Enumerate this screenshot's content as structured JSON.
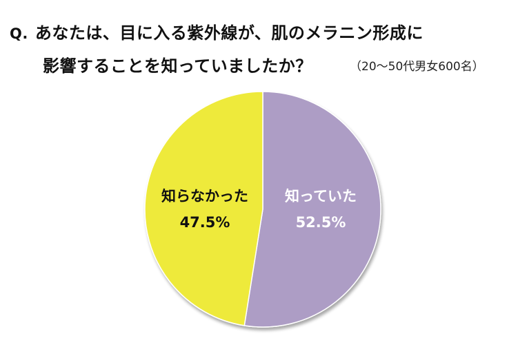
{
  "header": {
    "q_prefix": "Q.",
    "line1": "あなたは、目に入る紫外線が、肌のメラニン形成に",
    "line2": "影響することを知っていましたか？",
    "sample_note": "（20～50代男女600名）"
  },
  "labels": {
    "known": {
      "text": "知っていた",
      "percent": "52.5%"
    },
    "unknown": {
      "text": "知らなかった",
      "percent": "47.5%"
    }
  },
  "colors": {
    "known": "#ad9dc5",
    "unknown": "#eeea3a",
    "separator": "#ffffff",
    "shadow": "#b8b8b8"
  },
  "chart_data": {
    "type": "pie",
    "title": "あなたは、目に入る紫外線が、肌のメラニン形成に影響することを知っていましたか？",
    "subtitle": "（20～50代男女600名）",
    "categories": [
      "知っていた",
      "知らなかった"
    ],
    "values": [
      52.5,
      47.5
    ],
    "unit": "%",
    "start_angle": "12 o'clock, clockwise",
    "legend": "none (labels inside slices)",
    "colors": [
      "#ad9dc5",
      "#eeea3a"
    ]
  }
}
